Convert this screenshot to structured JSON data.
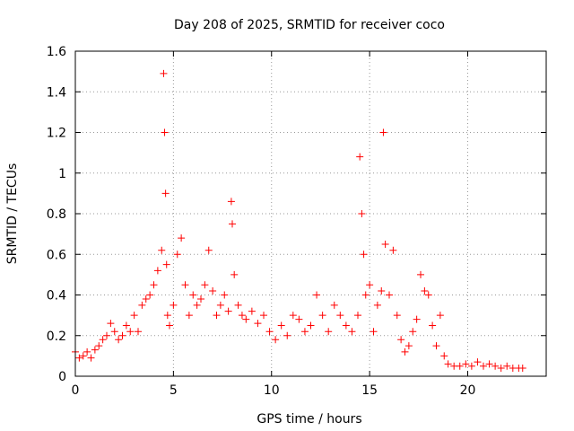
{
  "chart_data": {
    "type": "scatter",
    "title": "Day 208 of 2025, SRMTID for receiver coco",
    "xlabel": "GPS time / hours",
    "ylabel": "SRMTID / TECUs",
    "xlim": [
      0,
      24
    ],
    "ylim": [
      0,
      1.6
    ],
    "xticks": [
      0,
      5,
      10,
      15,
      20
    ],
    "xtick_labels": [
      "0",
      "5",
      "10",
      "15",
      "20"
    ],
    "yticks": [
      0,
      0.2,
      0.4,
      0.6,
      0.8,
      1.0,
      1.2,
      1.4,
      1.6
    ],
    "ytick_labels": [
      "0",
      "0.2",
      "0.4",
      "0.6",
      "0.8",
      "1",
      "1.2",
      "1.4",
      "1.6"
    ],
    "grid": true,
    "marker": "+",
    "color": "#ff0000",
    "series": [
      {
        "name": "SRMTID",
        "x": [
          0.0,
          0.2,
          0.4,
          0.6,
          0.8,
          1.0,
          1.2,
          1.4,
          1.6,
          1.8,
          2.0,
          2.2,
          2.4,
          2.6,
          2.8,
          3.0,
          3.2,
          3.4,
          3.6,
          3.8,
          4.0,
          4.2,
          4.4,
          4.5,
          4.55,
          4.6,
          4.65,
          4.7,
          4.8,
          5.0,
          5.2,
          5.4,
          5.6,
          5.8,
          6.0,
          6.2,
          6.4,
          6.6,
          6.8,
          7.0,
          7.2,
          7.4,
          7.6,
          7.8,
          7.95,
          8.0,
          8.1,
          8.3,
          8.5,
          8.7,
          9.0,
          9.3,
          9.6,
          9.9,
          10.2,
          10.5,
          10.8,
          11.1,
          11.4,
          11.7,
          12.0,
          12.3,
          12.6,
          12.9,
          13.2,
          13.5,
          13.8,
          14.1,
          14.4,
          14.5,
          14.6,
          14.7,
          14.8,
          15.0,
          15.2,
          15.4,
          15.6,
          15.7,
          15.8,
          16.0,
          16.2,
          16.4,
          16.6,
          16.8,
          17.0,
          17.2,
          17.4,
          17.6,
          17.8,
          18.0,
          18.2,
          18.4,
          18.6,
          18.8,
          19.0,
          19.3,
          19.6,
          19.9,
          20.2,
          20.5,
          20.8,
          21.1,
          21.4,
          21.7,
          22.0,
          22.3,
          22.6,
          22.8
        ],
        "y": [
          0.12,
          0.09,
          0.1,
          0.12,
          0.09,
          0.13,
          0.15,
          0.18,
          0.2,
          0.26,
          0.22,
          0.18,
          0.2,
          0.25,
          0.22,
          0.3,
          0.22,
          0.35,
          0.38,
          0.4,
          0.45,
          0.52,
          0.62,
          1.49,
          1.2,
          0.9,
          0.55,
          0.3,
          0.25,
          0.35,
          0.6,
          0.68,
          0.45,
          0.3,
          0.4,
          0.35,
          0.38,
          0.45,
          0.62,
          0.42,
          0.3,
          0.35,
          0.4,
          0.32,
          0.86,
          0.75,
          0.5,
          0.35,
          0.3,
          0.28,
          0.32,
          0.26,
          0.3,
          0.22,
          0.18,
          0.25,
          0.2,
          0.3,
          0.28,
          0.22,
          0.25,
          0.4,
          0.3,
          0.22,
          0.35,
          0.3,
          0.25,
          0.22,
          0.3,
          1.08,
          0.8,
          0.6,
          0.4,
          0.45,
          0.22,
          0.35,
          0.42,
          1.2,
          0.65,
          0.4,
          0.62,
          0.3,
          0.18,
          0.12,
          0.15,
          0.22,
          0.28,
          0.5,
          0.42,
          0.4,
          0.25,
          0.15,
          0.3,
          0.1,
          0.06,
          0.05,
          0.05,
          0.06,
          0.05,
          0.07,
          0.05,
          0.06,
          0.05,
          0.04,
          0.05,
          0.04,
          0.04,
          0.04
        ]
      }
    ]
  }
}
